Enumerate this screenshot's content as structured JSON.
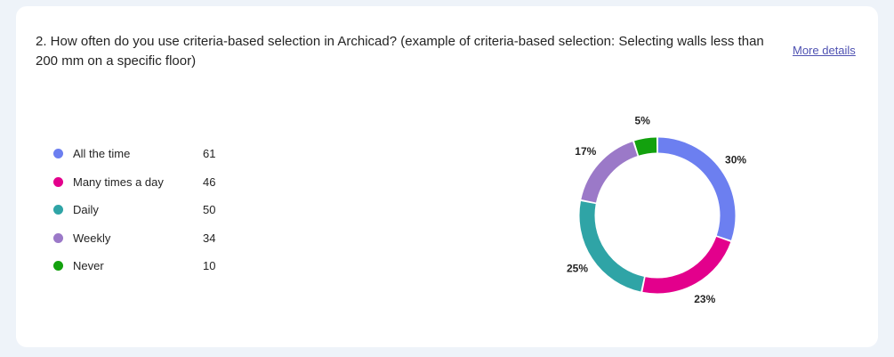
{
  "question": {
    "text": "2. How often do you use criteria-based selection in Archicad?  (example of criteria-based selection: Selecting walls less than 200 mm on a specific floor)",
    "more_details": "More details"
  },
  "chart_data": {
    "type": "pie",
    "donut": true,
    "categories": [
      "All the time",
      "Many times a day",
      "Daily",
      "Weekly",
      "Never"
    ],
    "values": [
      61,
      46,
      50,
      34,
      10
    ],
    "percent_labels": [
      "30%",
      "23%",
      "25%",
      "17%",
      "5%"
    ],
    "colors": [
      "#6c7ff0",
      "#e3008c",
      "#2fa4a6",
      "#9b79c8",
      "#13a10e"
    ],
    "legend_position": "left"
  }
}
